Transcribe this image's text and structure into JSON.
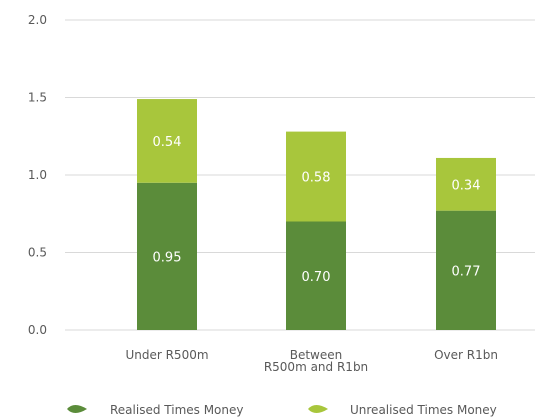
{
  "chart_data": {
    "type": "bar",
    "stacked": true,
    "categories": [
      [
        "Under R500m"
      ],
      [
        "Between",
        "R500m and R1bn"
      ],
      [
        "Over R1bn"
      ]
    ],
    "series": [
      {
        "name": "Realised Times Money",
        "values": [
          0.95,
          0.7,
          0.77
        ],
        "labels": [
          "0.95",
          "0.70",
          "0.77"
        ],
        "color": "#5b8c3a"
      },
      {
        "name": "Unrealised Times Money",
        "values": [
          0.54,
          0.58,
          0.34
        ],
        "labels": [
          "0.54",
          "0.58",
          "0.34"
        ],
        "color": "#a8c63c"
      }
    ],
    "ylim": [
      0,
      2.0
    ],
    "yticks": [
      "0.0",
      "0.5",
      "1.0",
      "1.5",
      "2.0"
    ],
    "grid": true,
    "legend_position": "bottom"
  }
}
